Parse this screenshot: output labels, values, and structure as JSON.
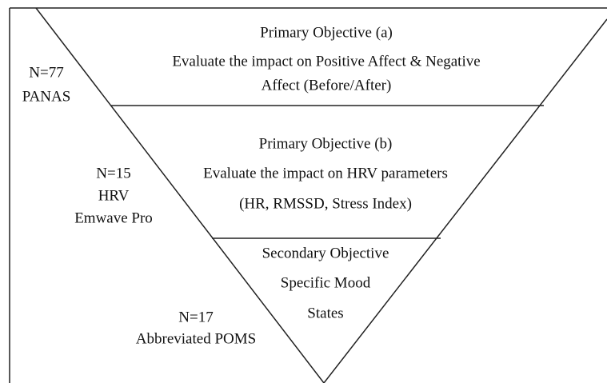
{
  "tiers": [
    {
      "objective": [
        "Primary Objective (a)",
        "Evaluate the impact on Positive Affect & Negative",
        "Affect (Before/After)"
      ],
      "sample": [
        "N=77",
        "PANAS"
      ]
    },
    {
      "objective": [
        "Primary Objective (b)",
        "Evaluate the impact on HRV parameters",
        "(HR, RMSSD, Stress Index)"
      ],
      "sample": [
        "N=15",
        "HRV",
        "Emwave Pro"
      ]
    },
    {
      "objective": [
        "Secondary Objective",
        "Specific Mood",
        "States"
      ],
      "sample": [
        "N=17",
        "Abbreviated POMS"
      ]
    }
  ]
}
